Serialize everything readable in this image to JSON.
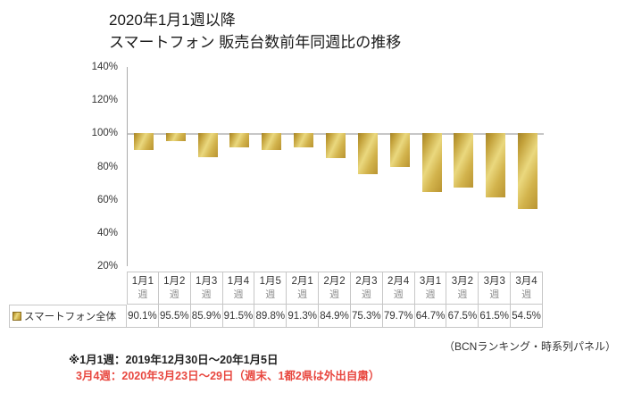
{
  "title": {
    "line1": "2020年1月1週以降",
    "line2": "スマートフォン 販売台数前年同週比の推移"
  },
  "chart_data": {
    "type": "bar",
    "subtype": "bars-hanging-from-100%-baseline",
    "categories": [
      "1月1週",
      "1月2週",
      "1月3週",
      "1月4週",
      "1月5週",
      "2月1週",
      "2月2週",
      "2月3週",
      "2月4週",
      "3月1週",
      "3月2週",
      "3月3週",
      "3月4週"
    ],
    "series": [
      {
        "name": "スマートフォン全体",
        "values": [
          90.1,
          95.5,
          85.9,
          91.5,
          89.8,
          91.3,
          84.9,
          75.3,
          79.7,
          64.7,
          67.5,
          61.5,
          54.5
        ]
      }
    ],
    "value_suffix": "%",
    "ylim": [
      20,
      140
    ],
    "ytick_values": [
      140,
      120,
      100,
      80,
      60,
      40,
      20
    ],
    "ytick_suffix": "%",
    "baseline_value": 100,
    "gridline_at": 100,
    "grid": "only 100% line",
    "legend_position": "bottom data table",
    "colors": {
      "bar_gradient_stops": [
        "#a3832a",
        "#c2a039",
        "#ead87e",
        "#d2b34c",
        "#b99431"
      ],
      "gridline": "#c6c6c6",
      "axis": "#ababab",
      "table_border": "#c7c7c7"
    }
  },
  "table": {
    "legend_label": "スマートフォン全体"
  },
  "notes": {
    "source": "（BCNランキング・時系列パネル）",
    "note1": "※1月1週：2019年12月30日～20年1月5日",
    "note2": "3月4週：2020年3月23日～29日（週末、1都2県は外出自粛）",
    "note2_color": "#e8473f"
  }
}
